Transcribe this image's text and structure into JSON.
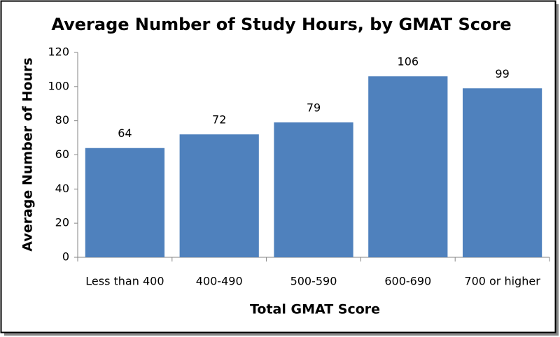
{
  "chart_data": {
    "type": "bar",
    "title": "Average Number of Study Hours, by GMAT Score",
    "x_label": "Total GMAT Score",
    "y_label": "Average Number of Hours",
    "categories": [
      "Less than 400",
      "400-490",
      "500-590",
      "600-690",
      "700 or higher"
    ],
    "values": [
      64,
      72,
      79,
      106,
      99
    ],
    "color": "#4f81bd",
    "ylim": [
      0,
      120
    ],
    "yticks": [
      0,
      20,
      40,
      60,
      80,
      100,
      120
    ],
    "grid": false
  }
}
